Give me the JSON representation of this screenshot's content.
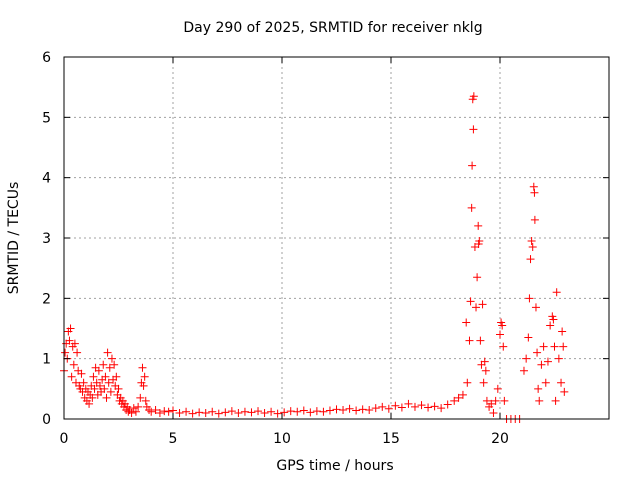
{
  "chart_data": {
    "type": "scatter",
    "title": "Day 290 of 2025, SRMTID for receiver nklg",
    "xlabel": "GPS time / hours",
    "ylabel": "SRMTID / TECUs",
    "xlim": [
      0,
      25
    ],
    "ylim": [
      0,
      6
    ],
    "xticks": [
      0,
      5,
      10,
      15,
      20
    ],
    "xtick_labels": [
      "0",
      "5",
      "10",
      "15",
      "20"
    ],
    "yticks": [
      0,
      1,
      2,
      3,
      4,
      5,
      6
    ],
    "ytick_labels": [
      "0",
      "1",
      "2",
      "3",
      "4",
      "5",
      "6"
    ],
    "grid": true,
    "marker": "plus",
    "color": "#ff0000",
    "series": [
      {
        "name": "nklg",
        "points": [
          [
            0.0,
            0.8
          ],
          [
            0.05,
            1.1
          ],
          [
            0.1,
            1.25
          ],
          [
            0.15,
            1.0
          ],
          [
            0.2,
            1.45
          ],
          [
            0.25,
            1.3
          ],
          [
            0.3,
            1.5
          ],
          [
            0.35,
            0.7
          ],
          [
            0.4,
            1.2
          ],
          [
            0.45,
            0.9
          ],
          [
            0.5,
            1.25
          ],
          [
            0.55,
            0.6
          ],
          [
            0.6,
            1.1
          ],
          [
            0.65,
            0.8
          ],
          [
            0.7,
            0.55
          ],
          [
            0.75,
            0.5
          ],
          [
            0.8,
            0.75
          ],
          [
            0.85,
            0.45
          ],
          [
            0.9,
            0.6
          ],
          [
            0.95,
            0.35
          ],
          [
            1.0,
            0.5
          ],
          [
            1.05,
            0.3
          ],
          [
            1.1,
            0.45
          ],
          [
            1.15,
            0.25
          ],
          [
            1.2,
            0.4
          ],
          [
            1.25,
            0.55
          ],
          [
            1.3,
            0.35
          ],
          [
            1.35,
            0.7
          ],
          [
            1.4,
            0.5
          ],
          [
            1.45,
            0.85
          ],
          [
            1.5,
            0.6
          ],
          [
            1.55,
            0.4
          ],
          [
            1.6,
            0.8
          ],
          [
            1.65,
            0.55
          ],
          [
            1.7,
            0.45
          ],
          [
            1.75,
            0.65
          ],
          [
            1.8,
            0.9
          ],
          [
            1.85,
            0.5
          ],
          [
            1.9,
            0.7
          ],
          [
            1.95,
            0.35
          ],
          [
            2.0,
            1.1
          ],
          [
            2.05,
            0.6
          ],
          [
            2.1,
            0.85
          ],
          [
            2.15,
            0.45
          ],
          [
            2.2,
            1.0
          ],
          [
            2.25,
            0.65
          ],
          [
            2.3,
            0.9
          ],
          [
            2.35,
            0.55
          ],
          [
            2.4,
            0.7
          ],
          [
            2.45,
            0.4
          ],
          [
            2.5,
            0.5
          ],
          [
            2.55,
            0.3
          ],
          [
            2.6,
            0.35
          ],
          [
            2.65,
            0.25
          ],
          [
            2.7,
            0.3
          ],
          [
            2.75,
            0.2
          ],
          [
            2.8,
            0.25
          ],
          [
            2.85,
            0.15
          ],
          [
            2.9,
            0.2
          ],
          [
            2.95,
            0.12
          ],
          [
            3.0,
            0.15
          ],
          [
            3.1,
            0.1
          ],
          [
            3.2,
            0.18
          ],
          [
            3.3,
            0.12
          ],
          [
            3.4,
            0.2
          ],
          [
            3.5,
            0.35
          ],
          [
            3.55,
            0.6
          ],
          [
            3.6,
            0.85
          ],
          [
            3.65,
            0.55
          ],
          [
            3.7,
            0.7
          ],
          [
            3.75,
            0.3
          ],
          [
            3.8,
            0.2
          ],
          [
            3.9,
            0.15
          ],
          [
            4.0,
            0.12
          ],
          [
            4.2,
            0.15
          ],
          [
            4.4,
            0.1
          ],
          [
            4.6,
            0.13
          ],
          [
            4.8,
            0.12
          ],
          [
            5.0,
            0.14
          ],
          [
            5.3,
            0.1
          ],
          [
            5.6,
            0.12
          ],
          [
            5.9,
            0.09
          ],
          [
            6.2,
            0.11
          ],
          [
            6.5,
            0.1
          ],
          [
            6.8,
            0.12
          ],
          [
            7.1,
            0.09
          ],
          [
            7.4,
            0.11
          ],
          [
            7.7,
            0.13
          ],
          [
            8.0,
            0.1
          ],
          [
            8.3,
            0.12
          ],
          [
            8.6,
            0.11
          ],
          [
            8.9,
            0.13
          ],
          [
            9.2,
            0.1
          ],
          [
            9.5,
            0.12
          ],
          [
            9.8,
            0.09
          ],
          [
            10.1,
            0.11
          ],
          [
            10.4,
            0.13
          ],
          [
            10.7,
            0.12
          ],
          [
            11.0,
            0.14
          ],
          [
            11.3,
            0.11
          ],
          [
            11.6,
            0.13
          ],
          [
            11.9,
            0.12
          ],
          [
            12.2,
            0.14
          ],
          [
            12.5,
            0.16
          ],
          [
            12.8,
            0.15
          ],
          [
            13.1,
            0.17
          ],
          [
            13.4,
            0.14
          ],
          [
            13.7,
            0.16
          ],
          [
            14.0,
            0.15
          ],
          [
            14.3,
            0.18
          ],
          [
            14.6,
            0.2
          ],
          [
            14.9,
            0.17
          ],
          [
            15.2,
            0.22
          ],
          [
            15.5,
            0.19
          ],
          [
            15.8,
            0.25
          ],
          [
            16.1,
            0.2
          ],
          [
            16.4,
            0.23
          ],
          [
            16.7,
            0.19
          ],
          [
            17.0,
            0.21
          ],
          [
            17.3,
            0.18
          ],
          [
            17.6,
            0.24
          ],
          [
            17.9,
            0.3
          ],
          [
            18.1,
            0.35
          ],
          [
            18.3,
            0.4
          ],
          [
            18.45,
            1.6
          ],
          [
            18.5,
            0.6
          ],
          [
            18.6,
            1.3
          ],
          [
            18.65,
            1.95
          ],
          [
            18.7,
            3.5
          ],
          [
            18.72,
            4.2
          ],
          [
            18.75,
            5.3
          ],
          [
            18.78,
            4.8
          ],
          [
            18.8,
            5.35
          ],
          [
            18.85,
            2.85
          ],
          [
            18.9,
            1.85
          ],
          [
            18.95,
            2.35
          ],
          [
            19.0,
            3.2
          ],
          [
            19.02,
            2.9
          ],
          [
            19.05,
            2.95
          ],
          [
            19.1,
            1.3
          ],
          [
            19.15,
            0.9
          ],
          [
            19.2,
            1.9
          ],
          [
            19.25,
            0.6
          ],
          [
            19.3,
            0.95
          ],
          [
            19.35,
            0.8
          ],
          [
            19.4,
            0.3
          ],
          [
            19.5,
            0.2
          ],
          [
            19.6,
            0.25
          ],
          [
            19.7,
            0.1
          ],
          [
            19.8,
            0.3
          ],
          [
            19.9,
            0.5
          ],
          [
            20.0,
            1.4
          ],
          [
            20.05,
            1.6
          ],
          [
            20.1,
            1.55
          ],
          [
            20.15,
            1.2
          ],
          [
            20.2,
            0.3
          ],
          [
            20.3,
            0.0
          ],
          [
            20.5,
            0.0
          ],
          [
            20.7,
            0.0
          ],
          [
            20.9,
            0.0
          ],
          [
            21.1,
            0.8
          ],
          [
            21.2,
            1.0
          ],
          [
            21.3,
            1.35
          ],
          [
            21.35,
            2.0
          ],
          [
            21.4,
            2.65
          ],
          [
            21.45,
            2.95
          ],
          [
            21.5,
            2.85
          ],
          [
            21.55,
            3.85
          ],
          [
            21.58,
            3.75
          ],
          [
            21.6,
            3.3
          ],
          [
            21.65,
            1.85
          ],
          [
            21.7,
            1.1
          ],
          [
            21.75,
            0.5
          ],
          [
            21.8,
            0.3
          ],
          [
            21.9,
            0.9
          ],
          [
            22.0,
            1.2
          ],
          [
            22.1,
            0.6
          ],
          [
            22.2,
            0.95
          ],
          [
            22.3,
            1.55
          ],
          [
            22.4,
            1.7
          ],
          [
            22.45,
            1.65
          ],
          [
            22.5,
            1.2
          ],
          [
            22.55,
            0.3
          ],
          [
            22.6,
            2.1
          ],
          [
            22.7,
            1.0
          ],
          [
            22.8,
            0.6
          ],
          [
            22.85,
            1.45
          ],
          [
            22.9,
            1.2
          ],
          [
            22.95,
            0.45
          ]
        ]
      }
    ]
  }
}
